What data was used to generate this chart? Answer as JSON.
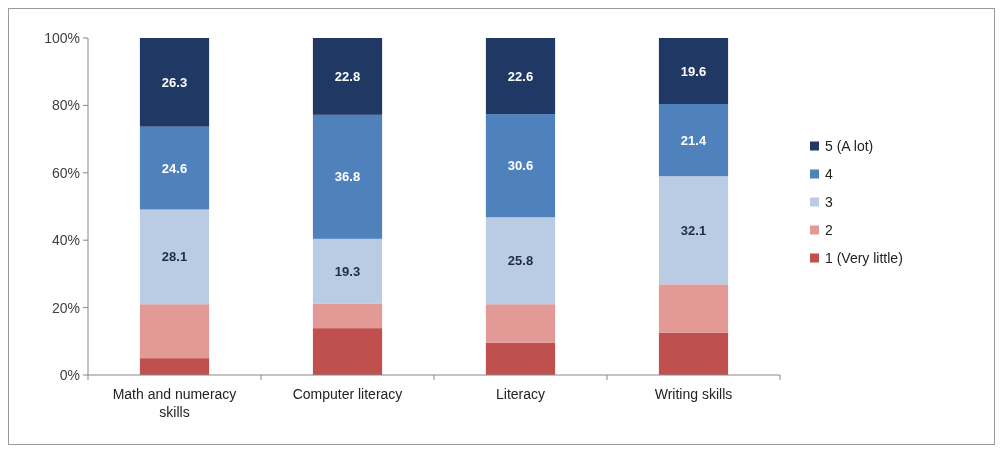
{
  "chart_data": {
    "type": "bar",
    "stacked": true,
    "categories": [
      "Math and numeracy skills",
      "Computer literacy",
      "Literacy",
      "Writing skills"
    ],
    "series": [
      {
        "name": "1 (Very little)",
        "color": "#c0504d",
        "values": [
          5,
          13.9,
          9.6,
          12.6
        ]
      },
      {
        "name": "2",
        "color": "#e39a97",
        "values": [
          16,
          7.2,
          11.4,
          14.3
        ]
      },
      {
        "name": "3",
        "color": "#b9cce4",
        "values": [
          28.1,
          19.3,
          25.8,
          32.1
        ],
        "value_labels": [
          "28.1",
          "19.3",
          "25.8",
          "32.1"
        ]
      },
      {
        "name": "4",
        "color": "#4f81bd",
        "values": [
          24.6,
          36.8,
          30.6,
          21.4
        ],
        "value_labels": [
          "24.6",
          "36.8",
          "30.6",
          "21.4"
        ]
      },
      {
        "name": "5 (A lot)",
        "color": "#1f3864",
        "values": [
          26.3,
          22.8,
          22.6,
          19.6
        ],
        "value_labels": [
          "26.3",
          "22.8",
          "22.6",
          "19.6"
        ]
      }
    ],
    "ylim": [
      0,
      100
    ],
    "yticks": [
      {
        "value": 0,
        "label": "0%"
      },
      {
        "value": 20,
        "label": "20%"
      },
      {
        "value": 40,
        "label": "40%"
      },
      {
        "value": 60,
        "label": "60%"
      },
      {
        "value": 80,
        "label": "80%"
      },
      {
        "value": 100,
        "label": "100%"
      }
    ],
    "legend": "right",
    "grid": false
  }
}
